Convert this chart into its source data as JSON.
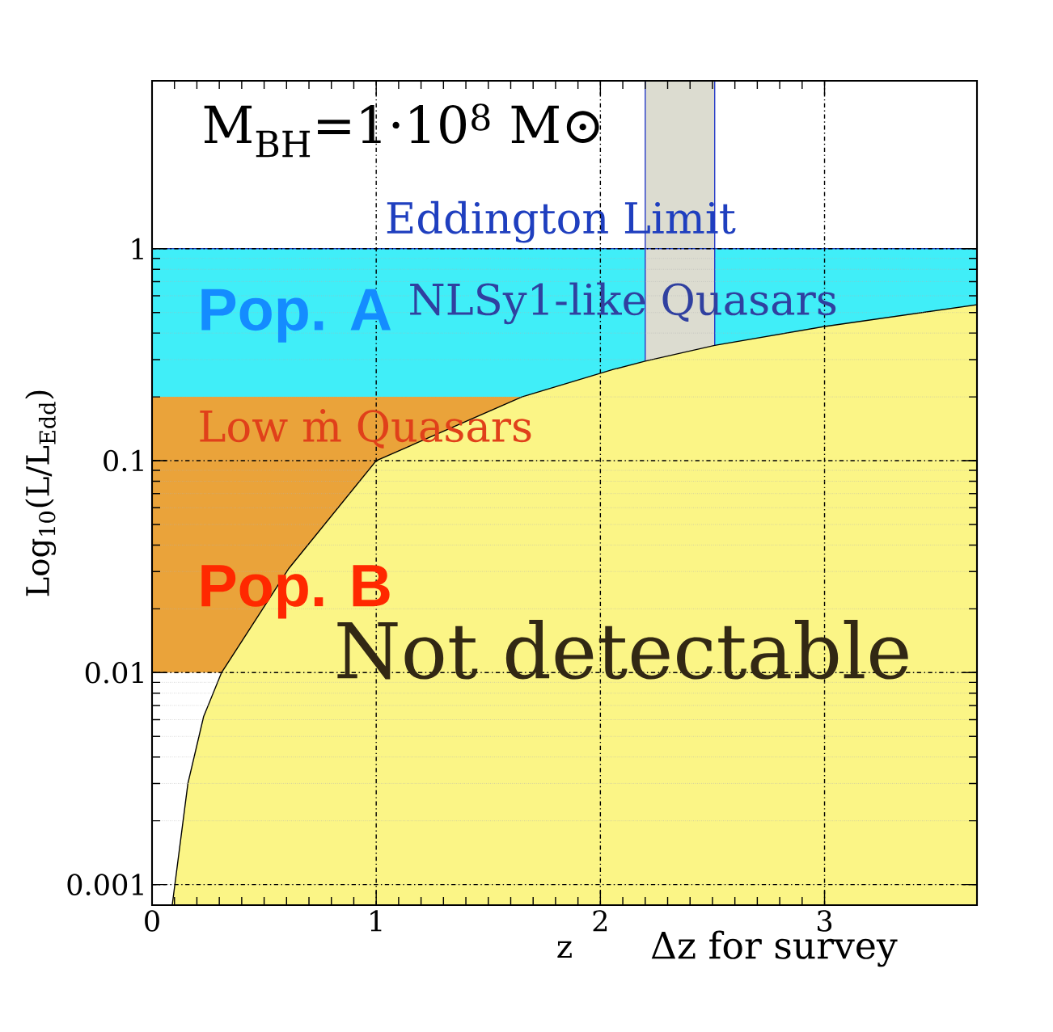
{
  "chart_data": {
    "type": "area",
    "xlabel": "z",
    "ylabel": "Log$_{10}$(L/L$_{Edd}$)",
    "log": "y",
    "grid": true,
    "xlim": [
      0,
      3.68
    ],
    "ylim": [
      0.0008,
      6.2
    ],
    "xticks": [
      0,
      1,
      2,
      3
    ],
    "yticks": [
      {
        "value": 0.001,
        "label": "0.001"
      },
      {
        "value": 0.01,
        "label": "0.01"
      },
      {
        "value": 0.1,
        "label": "0.1"
      },
      {
        "value": 1,
        "label": "1"
      }
    ],
    "series": [
      {
        "color": "#fbf586",
        "x": [
          0.09,
          0.16,
          0.23,
          0.31,
          0.61,
          1.0,
          1.65,
          2.06,
          2.2,
          2.51,
          3.0,
          3.68
        ],
        "values": [
          0.0008,
          0.003,
          0.0062,
          0.01,
          0.031,
          0.1,
          0.2,
          0.27,
          0.295,
          0.35,
          0.43,
          0.545
        ]
      }
    ],
    "bands": [
      {
        "axis": "y",
        "from": 0.2,
        "to": 1,
        "label": "NLSy1-like Quasars",
        "color": "#40eef8"
      },
      {
        "axis": "y",
        "from": 0.01,
        "to": 0.2,
        "label": "Low ṁ Quasars",
        "color": "#eaa33a"
      },
      {
        "axis": "x",
        "from": 2.2,
        "to": 2.51,
        "label": "Δz for survey",
        "color": "#dcdcd0"
      }
    ],
    "ref_lines": [
      {
        "axis": "y",
        "value": 1,
        "label": "Eddington Limit",
        "color": "#1f3fbf"
      }
    ],
    "annotations": [
      "M$_{BH}$=1·10$^{8}$ M⊙",
      "Pop. A",
      "Pop. B",
      "Not detectable"
    ]
  }
}
